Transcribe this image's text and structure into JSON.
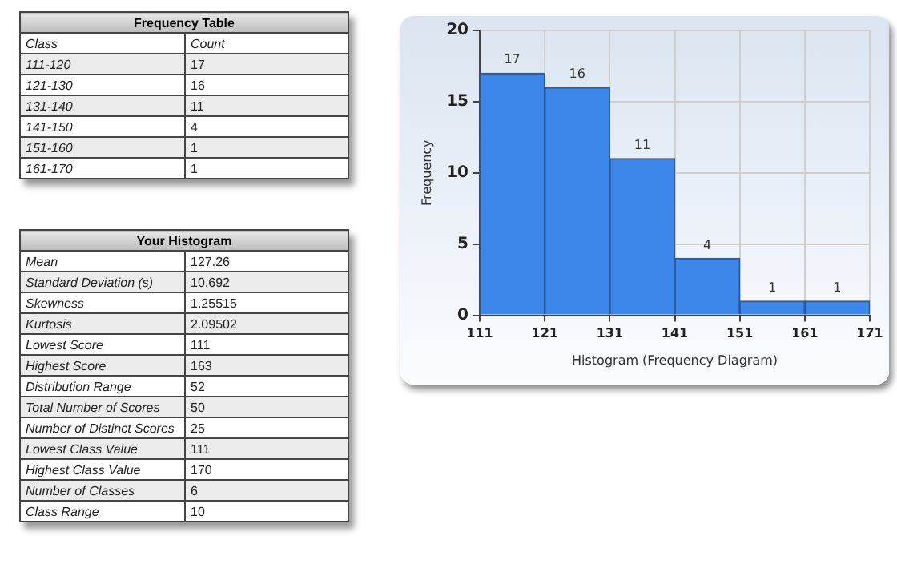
{
  "chart_data": [
    {
      "type": "other",
      "title": "Frequency Table",
      "annotations": [
        "Class",
        "Count",
        "111-120",
        "17",
        "121-130",
        "16",
        "131-140",
        "11",
        "141-150",
        "4",
        "151-160",
        "1",
        "161-170",
        "1"
      ]
    },
    {
      "type": "other",
      "title": "Your Histogram",
      "annotations": [
        "Mean",
        "127.26",
        "Standard Deviation (s)",
        "10.692",
        "Skewness",
        "1.25515",
        "Kurtosis",
        "2.09502",
        "Lowest Score",
        "111",
        "Highest Score",
        "163",
        "Distribution Range",
        "52",
        "Total Number of Scores",
        "50",
        "Number of Distinct Scores",
        "25",
        "Lowest Class Value",
        "111",
        "Highest Class Value",
        "170",
        "Number of Classes",
        "6",
        "Class Range",
        "10"
      ]
    },
    {
      "type": "histogram",
      "xlabel": "Histogram (Frequency Diagram)",
      "ylabel": "Frequency",
      "bins": [
        111,
        121,
        131,
        141,
        151,
        161,
        171
      ],
      "values": [
        17,
        16,
        11,
        4,
        1,
        1
      ],
      "color": "#3e87ea",
      "xlim": [
        111,
        171
      ],
      "xticks": [
        111,
        121,
        131,
        141,
        151,
        161,
        171
      ],
      "ylim": [
        0,
        20
      ],
      "yticks": [
        0,
        5,
        10,
        15,
        20
      ],
      "grid": true,
      "data_labels": true
    }
  ]
}
